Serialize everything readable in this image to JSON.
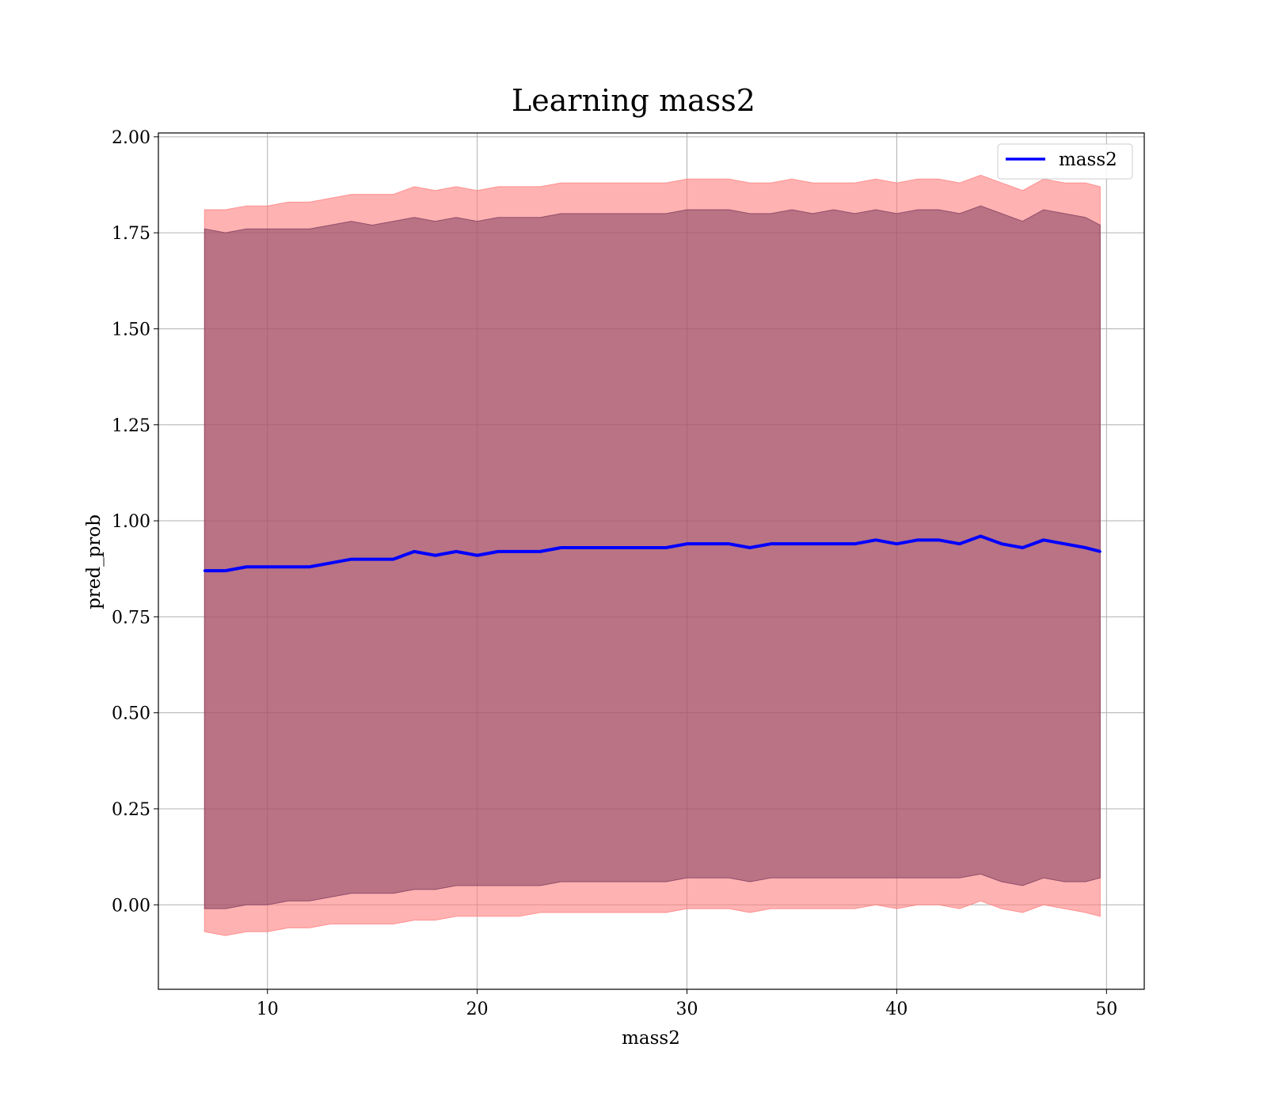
{
  "chart_data": {
    "type": "line",
    "title": "Learning mass2",
    "xlabel": "mass2",
    "ylabel": "pred_prob",
    "xlim": [
      4.8,
      51.8
    ],
    "ylim": [
      -0.22,
      2.01
    ],
    "x_ticks": [
      10,
      20,
      30,
      40,
      50
    ],
    "x_tick_labels": [
      "10",
      "20",
      "30",
      "40",
      "50"
    ],
    "y_ticks": [
      0.0,
      0.25,
      0.5,
      0.75,
      1.0,
      1.25,
      1.5,
      1.75,
      2.0
    ],
    "y_tick_labels": [
      "0.00",
      "0.25",
      "0.50",
      "0.75",
      "1.00",
      "1.25",
      "1.50",
      "1.75",
      "2.00"
    ],
    "grid": true,
    "legend": {
      "position": "top-right",
      "entries": [
        "mass2"
      ]
    },
    "colors": {
      "line": "#0000ff",
      "band_outer": "#ff7f7f",
      "band_inner": "#7f3f5f",
      "grid": "#b0b0b0"
    },
    "x": [
      7.0,
      8.0,
      9.0,
      10.0,
      11.0,
      12.0,
      13.0,
      14.0,
      15.0,
      16.0,
      17.0,
      18.0,
      19.0,
      20.0,
      21.0,
      22.0,
      23.0,
      24.0,
      25.0,
      26.0,
      27.0,
      28.0,
      29.0,
      30.0,
      31.0,
      32.0,
      33.0,
      34.0,
      35.0,
      36.0,
      37.0,
      38.0,
      39.0,
      40.0,
      41.0,
      42.0,
      43.0,
      44.0,
      45.0,
      46.0,
      47.0,
      48.0,
      49.0,
      49.7
    ],
    "series": [
      {
        "name": "mass2",
        "values": [
          0.87,
          0.87,
          0.88,
          0.88,
          0.88,
          0.88,
          0.89,
          0.9,
          0.9,
          0.9,
          0.92,
          0.91,
          0.92,
          0.91,
          0.92,
          0.92,
          0.92,
          0.93,
          0.93,
          0.93,
          0.93,
          0.93,
          0.93,
          0.94,
          0.94,
          0.94,
          0.93,
          0.94,
          0.94,
          0.94,
          0.94,
          0.94,
          0.95,
          0.94,
          0.95,
          0.95,
          0.94,
          0.96,
          0.94,
          0.93,
          0.95,
          0.94,
          0.93,
          0.92
        ]
      }
    ],
    "bands": [
      {
        "label": "outer",
        "upper": [
          1.81,
          1.81,
          1.82,
          1.82,
          1.83,
          1.83,
          1.84,
          1.85,
          1.85,
          1.85,
          1.87,
          1.86,
          1.87,
          1.86,
          1.87,
          1.87,
          1.87,
          1.88,
          1.88,
          1.88,
          1.88,
          1.88,
          1.88,
          1.89,
          1.89,
          1.89,
          1.88,
          1.88,
          1.89,
          1.88,
          1.88,
          1.88,
          1.89,
          1.88,
          1.89,
          1.89,
          1.88,
          1.9,
          1.88,
          1.86,
          1.89,
          1.88,
          1.88,
          1.87
        ],
        "lower": [
          -0.07,
          -0.08,
          -0.07,
          -0.07,
          -0.06,
          -0.06,
          -0.05,
          -0.05,
          -0.05,
          -0.05,
          -0.04,
          -0.04,
          -0.03,
          -0.03,
          -0.03,
          -0.03,
          -0.02,
          -0.02,
          -0.02,
          -0.02,
          -0.02,
          -0.02,
          -0.02,
          -0.01,
          -0.01,
          -0.01,
          -0.02,
          -0.01,
          -0.01,
          -0.01,
          -0.01,
          -0.01,
          0.0,
          -0.01,
          0.0,
          0.0,
          -0.01,
          0.01,
          -0.01,
          -0.02,
          0.0,
          -0.01,
          -0.02,
          -0.03
        ]
      },
      {
        "label": "inner",
        "upper": [
          1.76,
          1.75,
          1.76,
          1.76,
          1.76,
          1.76,
          1.77,
          1.78,
          1.77,
          1.78,
          1.79,
          1.78,
          1.79,
          1.78,
          1.79,
          1.79,
          1.79,
          1.8,
          1.8,
          1.8,
          1.8,
          1.8,
          1.8,
          1.81,
          1.81,
          1.81,
          1.8,
          1.8,
          1.81,
          1.8,
          1.81,
          1.8,
          1.81,
          1.8,
          1.81,
          1.81,
          1.8,
          1.82,
          1.8,
          1.78,
          1.81,
          1.8,
          1.79,
          1.77
        ],
        "lower": [
          -0.01,
          -0.01,
          0.0,
          0.0,
          0.01,
          0.01,
          0.02,
          0.03,
          0.03,
          0.03,
          0.04,
          0.04,
          0.05,
          0.05,
          0.05,
          0.05,
          0.05,
          0.06,
          0.06,
          0.06,
          0.06,
          0.06,
          0.06,
          0.07,
          0.07,
          0.07,
          0.06,
          0.07,
          0.07,
          0.07,
          0.07,
          0.07,
          0.07,
          0.07,
          0.07,
          0.07,
          0.07,
          0.08,
          0.06,
          0.05,
          0.07,
          0.06,
          0.06,
          0.07
        ]
      }
    ]
  }
}
